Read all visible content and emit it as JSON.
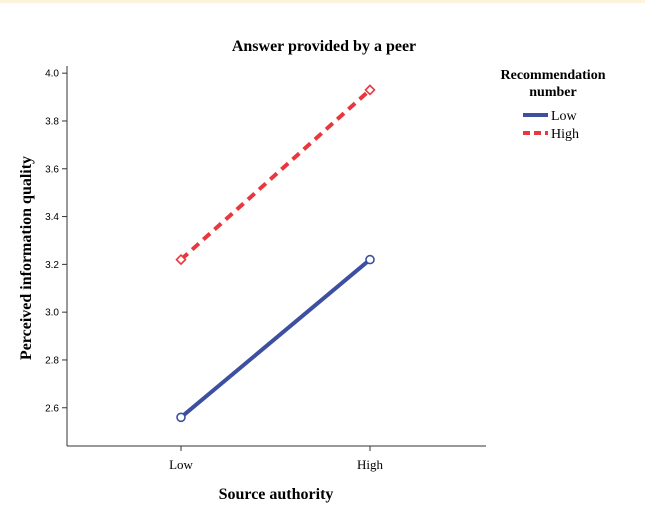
{
  "chart_data": {
    "type": "line",
    "title": "Answer provided by a peer",
    "xlabel": "Source authority",
    "ylabel": "Perceived information quality",
    "categories": [
      "Low",
      "High"
    ],
    "ylim": [
      2.44,
      4.03
    ],
    "yticks": [
      2.6,
      2.8,
      3.0,
      3.2,
      3.4,
      3.6,
      3.8,
      4.0
    ],
    "ytick_labels": [
      "2.6",
      "2.8",
      "3.0",
      "3.2",
      "3.4",
      "3.6",
      "3.8",
      "4.0"
    ],
    "grid": false,
    "legend": {
      "title": "Recommendation number",
      "title_lines": [
        "Recommendation",
        "number"
      ],
      "placement": "top-right"
    },
    "series": [
      {
        "name": "Low",
        "values": [
          2.56,
          3.22
        ],
        "color": "#3d4fa0",
        "style": "solid",
        "marker": "circle"
      },
      {
        "name": "High",
        "values": [
          3.22,
          3.93
        ],
        "color": "#e8383d",
        "style": "dashed",
        "marker": "diamond"
      }
    ]
  }
}
